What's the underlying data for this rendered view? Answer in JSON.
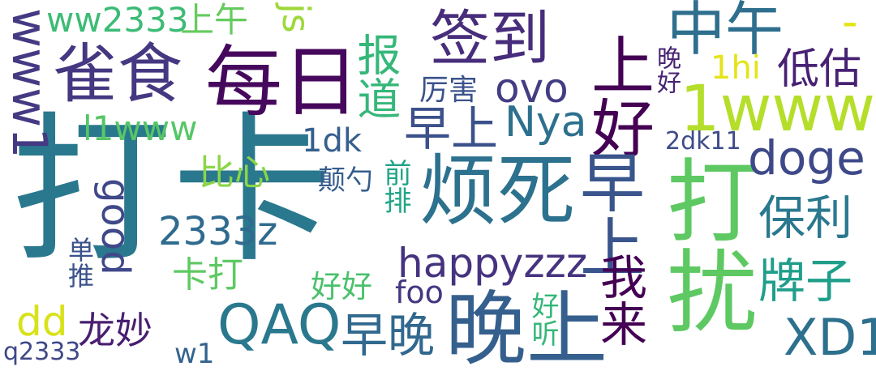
{
  "words": [
    {
      "text": "打卡",
      "color": "#2a788e"
    },
    {
      "text": "每日",
      "color": "#46085c"
    },
    {
      "text": "烦死",
      "color": "#2c718e"
    },
    {
      "text": "晚上",
      "color": "#355f8d"
    },
    {
      "text": "打扰",
      "color": "#5ec962"
    },
    {
      "text": "签到",
      "color": "#472d7b"
    },
    {
      "text": "雀食",
      "color": "#453781"
    },
    {
      "text": "中午",
      "color": "#2e6f8e"
    },
    {
      "text": "上好",
      "color": "#440154"
    },
    {
      "text": "1www",
      "color": "#b5de2b"
    },
    {
      "text": "早上",
      "color": "#39558c"
    },
    {
      "text": "早上",
      "color": "#3b518b"
    },
    {
      "text": "doge",
      "color": "#3e4989"
    },
    {
      "text": "保利",
      "color": "#2a788e"
    },
    {
      "text": "牌子",
      "color": "#1f9e89"
    },
    {
      "text": "XD1",
      "color": "#2d708e"
    },
    {
      "text": "QAQ",
      "color": "#2a788e"
    },
    {
      "text": "早晚",
      "color": "#31688e"
    },
    {
      "text": "我来",
      "color": "#440154"
    },
    {
      "text": "happyzzz",
      "color": "#46337f"
    },
    {
      "text": "Nya",
      "color": "#2d708e"
    },
    {
      "text": "ovo",
      "color": "#433d84"
    },
    {
      "text": "报道",
      "color": "#35b779"
    },
    {
      "text": "低估",
      "color": "#482173"
    },
    {
      "text": "ww2333",
      "color": "#3cbb75"
    },
    {
      "text": "上午",
      "color": "#65cb5e"
    },
    {
      "text": "js",
      "color": "#9dd93b"
    },
    {
      "text": "www1",
      "color": "#443a83"
    },
    {
      "text": "l1www",
      "color": "#56c667"
    },
    {
      "text": "比心",
      "color": "#8bd646"
    },
    {
      "text": "good",
      "color": "#3f4889"
    },
    {
      "text": "2333z",
      "color": "#2f6b8e"
    },
    {
      "text": "卡打",
      "color": "#5ec962"
    },
    {
      "text": "好好",
      "color": "#4ac16d"
    },
    {
      "text": "foo",
      "color": "#453882"
    },
    {
      "text": "dd",
      "color": "#d8e219"
    },
    {
      "text": "龙妙",
      "color": "#481f70"
    },
    {
      "text": "w1",
      "color": "#33638d"
    },
    {
      "text": "q2333",
      "color": "#3f4889"
    },
    {
      "text": "单推",
      "color": "#3b528b"
    },
    {
      "text": "厉害",
      "color": "#3b528b"
    },
    {
      "text": "1dk",
      "color": "#355f8d"
    },
    {
      "text": "颠勺",
      "color": "#365c8d"
    },
    {
      "text": "前排",
      "color": "#20a486"
    },
    {
      "text": "好听",
      "color": "#35b779"
    },
    {
      "text": "晚好",
      "color": "#482374"
    },
    {
      "text": "1hi",
      "color": "#e5e419"
    },
    {
      "text": "2dk11",
      "color": "#3e4c8a"
    },
    {
      "text": "-",
      "color": "#e2e418"
    }
  ]
}
